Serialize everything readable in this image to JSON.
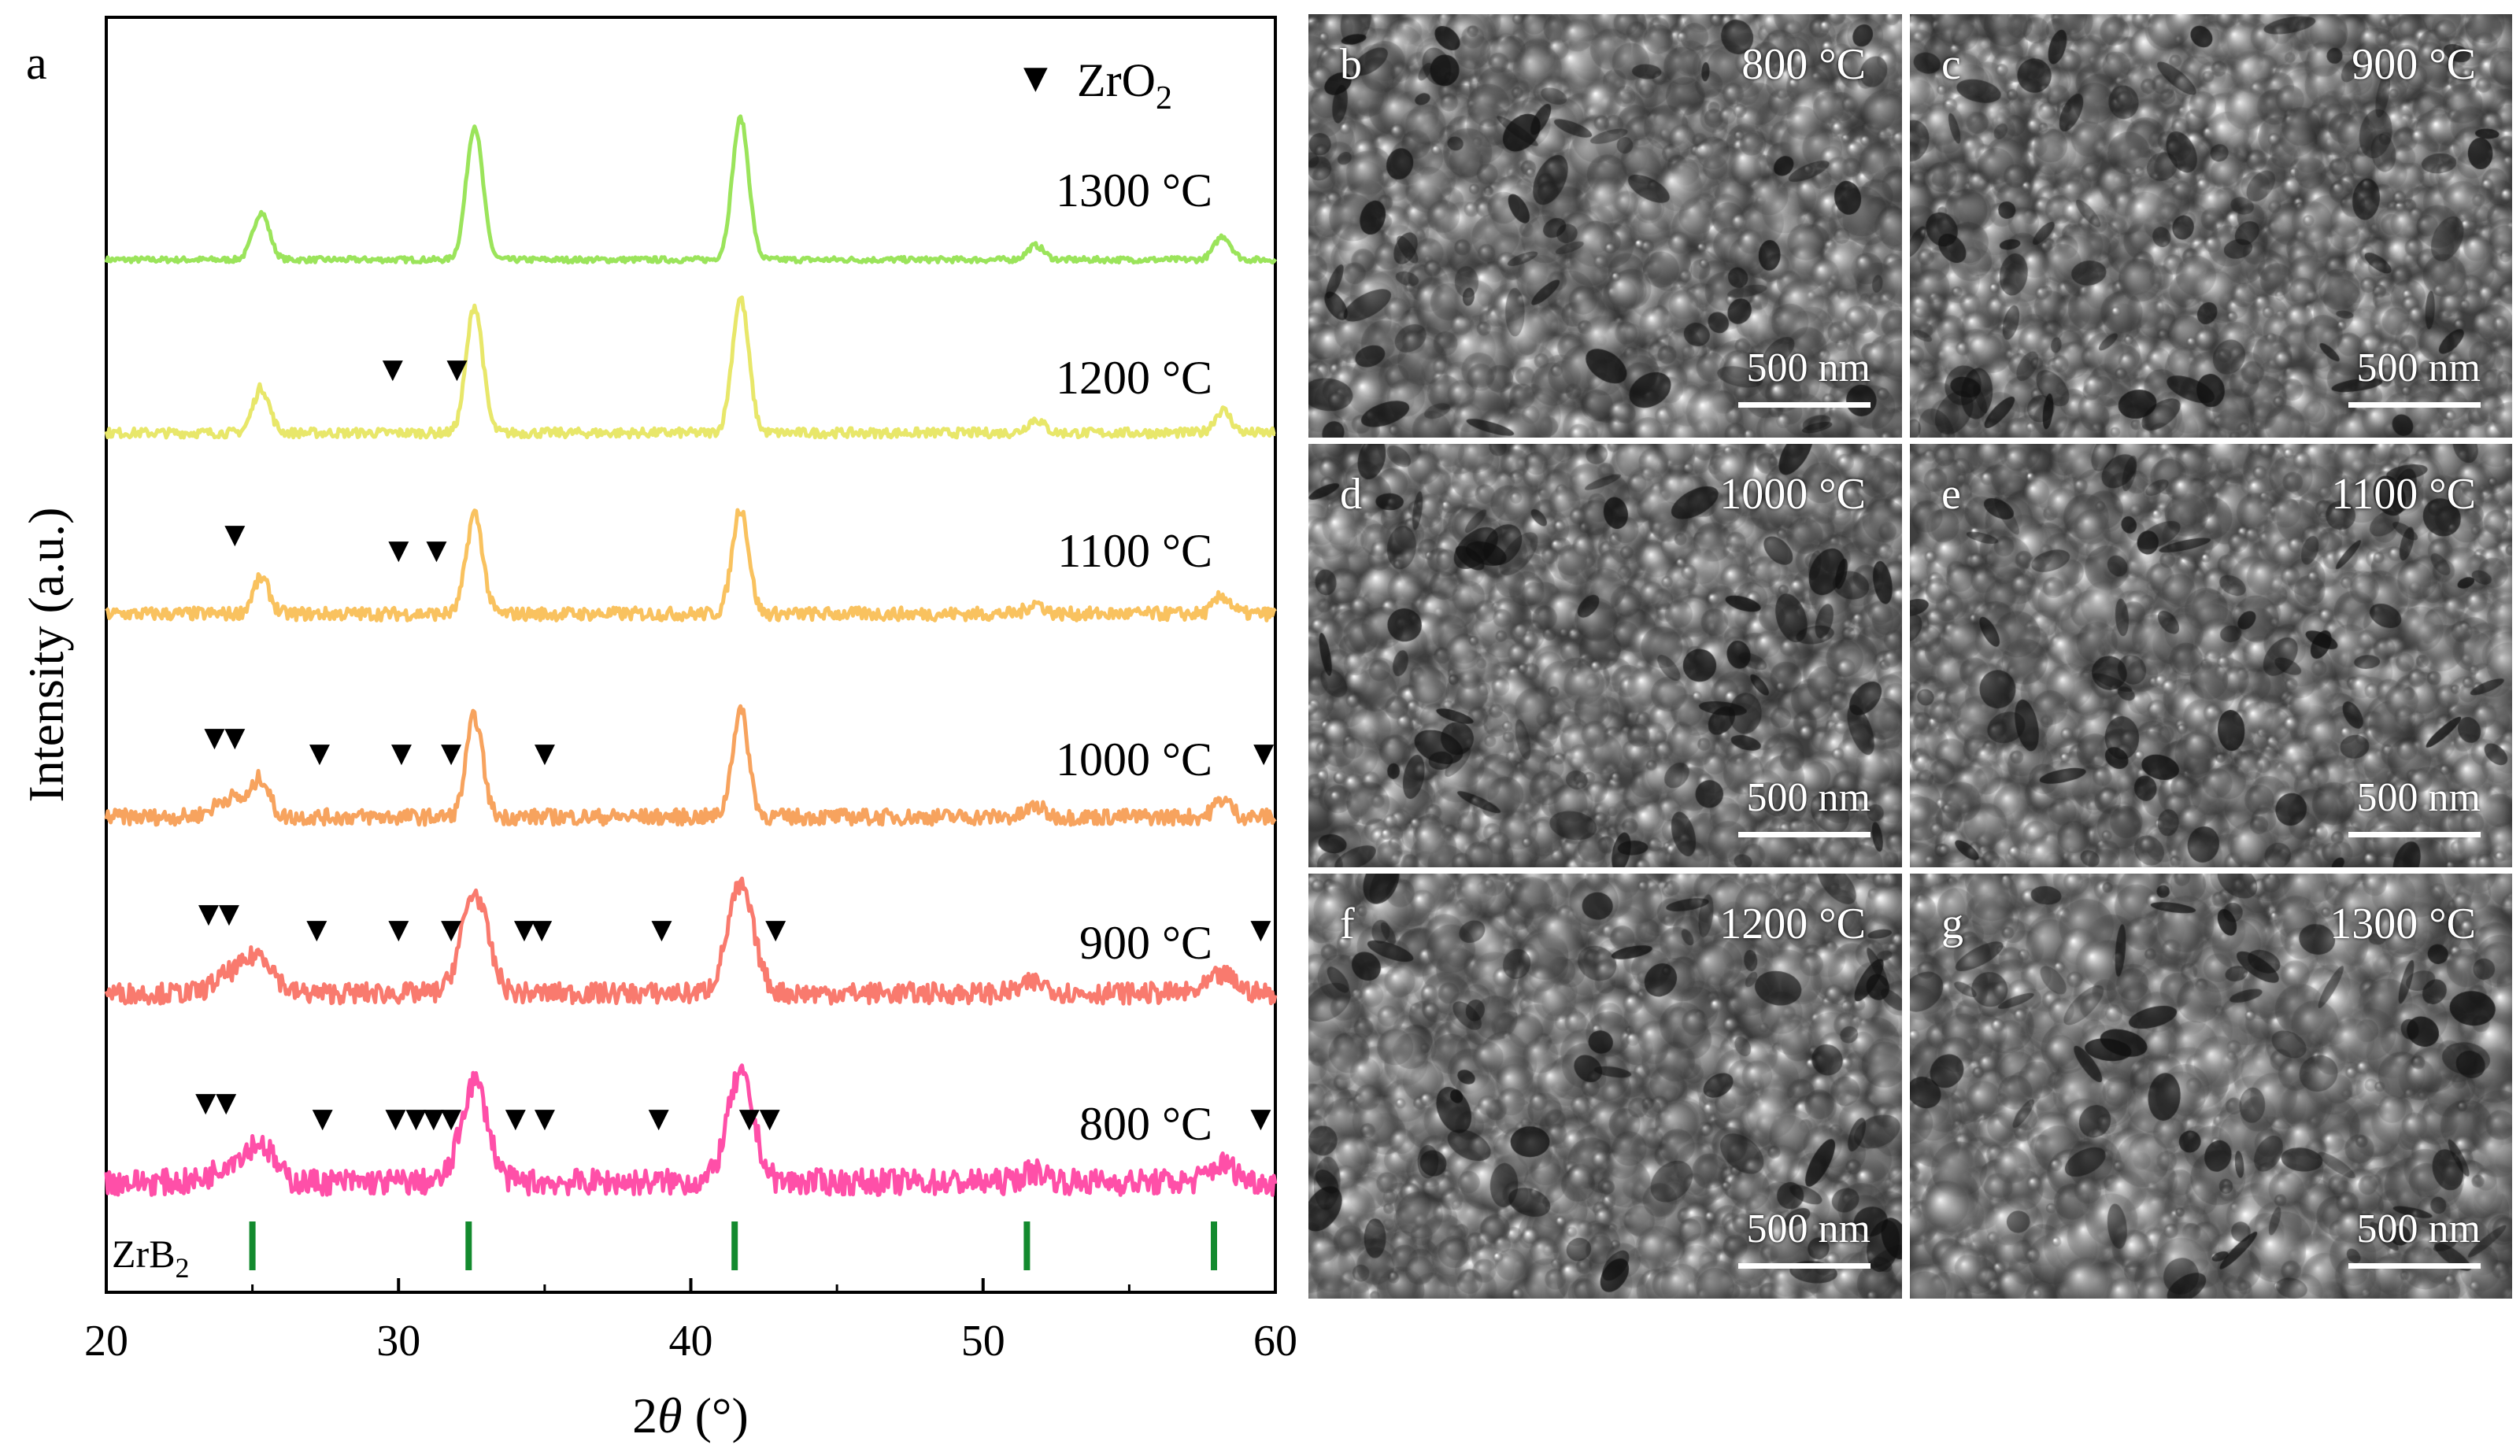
{
  "chart_data": {
    "type": "line",
    "panel_label": "a",
    "xlabel_main": "2",
    "xlabel_theta": "θ",
    "xlabel_unit": " (°)",
    "ylabel": "Intensity (a.u.)",
    "xlim": [
      20,
      60
    ],
    "xticks": [
      "20",
      "30",
      "40",
      "50",
      "60"
    ],
    "legend": {
      "marker": "▼",
      "label": "ZrO",
      "label_sub": "2"
    },
    "reference": {
      "label": "ZrB",
      "label_sub": "2",
      "color": "#138a2e",
      "positions": [
        25.0,
        32.4,
        41.5,
        51.5,
        57.9
      ]
    },
    "series": [
      {
        "name": "1300 °C",
        "color": "#9be45b",
        "noise": 0.4,
        "zro2_markers": []
      },
      {
        "name": "1200 °C",
        "color": "#e8e76a",
        "noise": 1.0,
        "zro2_markers": [
          29.8,
          32.0
        ]
      },
      {
        "name": "1100 °C",
        "color": "#f9c25f",
        "noise": 1.6,
        "zro2_markers": [
          24.4,
          30.0,
          31.3
        ]
      },
      {
        "name": "1000 °C",
        "color": "#f7a35e",
        "noise": 2.0,
        "zro2_markers": [
          23.7,
          24.4,
          27.3,
          30.1,
          31.8,
          35.0,
          59.6
        ]
      },
      {
        "name": "900 °C",
        "color": "#f97a6e",
        "noise": 2.8,
        "zro2_markers": [
          23.5,
          24.2,
          27.2,
          30.0,
          31.8,
          34.3,
          34.9,
          39.0,
          42.9,
          59.5
        ]
      },
      {
        "name": "800 °C",
        "color": "#ff4fa8",
        "noise": 3.6,
        "zro2_markers": [
          23.4,
          24.1,
          27.4,
          29.9,
          30.6,
          31.2,
          31.8,
          34.0,
          35.0,
          38.9,
          42.0,
          42.7,
          59.5
        ]
      }
    ]
  },
  "sem_panels": [
    {
      "letter": "b",
      "temp": "800 °C",
      "scale": "500 nm"
    },
    {
      "letter": "c",
      "temp": "900 °C",
      "scale": "500 nm"
    },
    {
      "letter": "d",
      "temp": "1000 °C",
      "scale": "500 nm"
    },
    {
      "letter": "e",
      "temp": "1100 °C",
      "scale": "500 nm"
    },
    {
      "letter": "f",
      "temp": "1200 °C",
      "scale": "500 nm"
    },
    {
      "letter": "g",
      "temp": "1300 °C",
      "scale": "500 nm"
    }
  ]
}
